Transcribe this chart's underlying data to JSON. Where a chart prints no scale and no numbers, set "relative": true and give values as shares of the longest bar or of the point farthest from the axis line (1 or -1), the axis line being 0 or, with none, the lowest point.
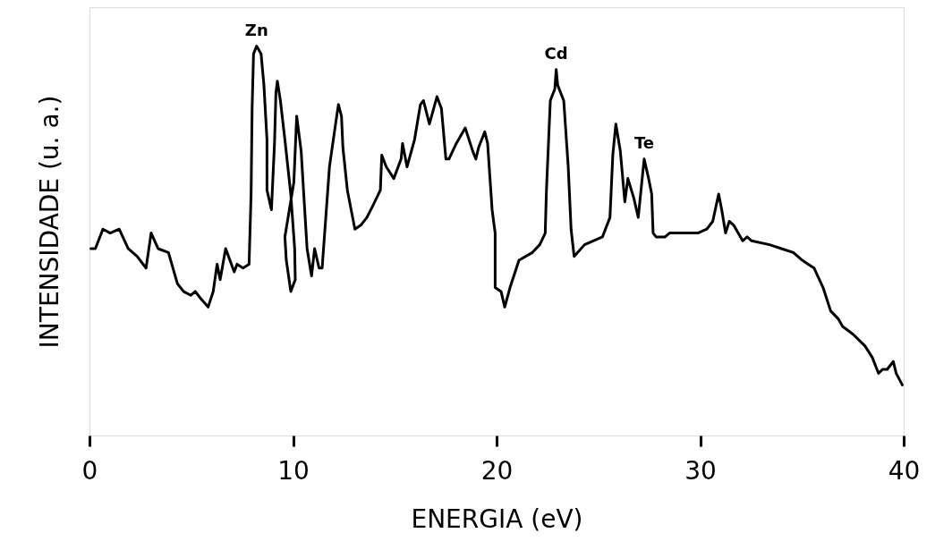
{
  "chart_data": {
    "type": "line",
    "relative": true,
    "xlabel": "ENERGIA (eV)",
    "ylabel": "INTENSIDADE (u. a.)",
    "xlim": [
      0,
      40
    ],
    "xticks": [
      0,
      10,
      20,
      30,
      40
    ],
    "grid": false,
    "marker": "none",
    "line_style": "solid",
    "annotations": [
      {
        "text": "Zn",
        "x": 8.21,
        "y": 1.0
      },
      {
        "text": "Cd",
        "x": 22.93,
        "y": 0.94
      },
      {
        "text": "Te",
        "x": 27.25,
        "y": 0.71
      }
    ],
    "series": [
      {
        "color": "#000000",
        "x": [
          0.07,
          0.29,
          0.66,
          1.02,
          1.46,
          1.9,
          2.34,
          2.78,
          3.03,
          3.37,
          3.88,
          4.32,
          4.62,
          4.98,
          5.2,
          5.49,
          5.83,
          6.08,
          6.27,
          6.42,
          6.69,
          7.11,
          7.25,
          7.55,
          7.84,
          7.94,
          7.99,
          8.06,
          8.21,
          8.43,
          8.57,
          8.72,
          8.72,
          8.94,
          9.09,
          9.16,
          9.23,
          9.38,
          9.6,
          9.89,
          10.08,
          10.11,
          9.89,
          9.67,
          9.6,
          9.82,
          10.04,
          10.18,
          10.4,
          10.55,
          10.69,
          10.91,
          11.06,
          11.28,
          11.43,
          11.79,
          12.09,
          12.23,
          12.38,
          12.45,
          12.67,
          13.04,
          13.33,
          13.63,
          13.92,
          14.29,
          14.36,
          14.58,
          14.95,
          15.31,
          15.38,
          15.6,
          15.97,
          16.26,
          16.41,
          16.7,
          17.07,
          17.29,
          17.51,
          17.66,
          18.02,
          18.46,
          18.83,
          18.98,
          19.12,
          19.42,
          19.56,
          19.78,
          19.93,
          19.93,
          20.22,
          20.4,
          20.66,
          21.1,
          21.76,
          22.12,
          22.39,
          22.45,
          22.64,
          22.86,
          22.93,
          23.0,
          23.3,
          23.52,
          23.66,
          23.81,
          24.32,
          25.2,
          25.57,
          25.71,
          25.86,
          26.08,
          26.3,
          26.45,
          26.74,
          26.96,
          27.25,
          27.47,
          27.62,
          27.69,
          27.84,
          28.28,
          28.5,
          29.01,
          29.31,
          29.89,
          30.33,
          30.62,
          30.91,
          31.06,
          31.25,
          31.43,
          31.65,
          32.09,
          32.31,
          32.53,
          33.41,
          33.99,
          34.58,
          35.02,
          35.31,
          35.6,
          36.04,
          36.41,
          36.78,
          37.0,
          37.51,
          38.1,
          38.46,
          38.76,
          38.97,
          39.19,
          39.49,
          39.63,
          39.93
        ],
        "values": [
          0.48,
          0.48,
          0.53,
          0.52,
          0.53,
          0.48,
          0.46,
          0.43,
          0.52,
          0.48,
          0.47,
          0.39,
          0.37,
          0.36,
          0.37,
          0.35,
          0.33,
          0.37,
          0.44,
          0.4,
          0.48,
          0.42,
          0.44,
          0.43,
          0.44,
          0.62,
          0.84,
          0.98,
          1.0,
          0.98,
          0.9,
          0.76,
          0.63,
          0.58,
          0.75,
          0.88,
          0.91,
          0.86,
          0.76,
          0.62,
          0.48,
          0.4,
          0.37,
          0.45,
          0.51,
          0.58,
          0.65,
          0.82,
          0.73,
          0.6,
          0.48,
          0.41,
          0.48,
          0.43,
          0.43,
          0.69,
          0.8,
          0.85,
          0.82,
          0.74,
          0.63,
          0.53,
          0.54,
          0.56,
          0.59,
          0.63,
          0.72,
          0.69,
          0.66,
          0.71,
          0.75,
          0.69,
          0.76,
          0.85,
          0.86,
          0.8,
          0.87,
          0.84,
          0.71,
          0.71,
          0.75,
          0.79,
          0.73,
          0.71,
          0.74,
          0.78,
          0.75,
          0.58,
          0.52,
          0.38,
          0.37,
          0.33,
          0.38,
          0.45,
          0.47,
          0.49,
          0.52,
          0.63,
          0.86,
          0.89,
          0.94,
          0.9,
          0.86,
          0.69,
          0.53,
          0.46,
          0.49,
          0.51,
          0.56,
          0.72,
          0.8,
          0.73,
          0.6,
          0.66,
          0.61,
          0.56,
          0.71,
          0.66,
          0.62,
          0.52,
          0.51,
          0.51,
          0.52,
          0.52,
          0.52,
          0.52,
          0.53,
          0.55,
          0.62,
          0.58,
          0.52,
          0.55,
          0.54,
          0.5,
          0.51,
          0.5,
          0.49,
          0.48,
          0.47,
          0.45,
          0.44,
          0.43,
          0.38,
          0.32,
          0.3,
          0.28,
          0.26,
          0.23,
          0.2,
          0.16,
          0.17,
          0.17,
          0.19,
          0.16,
          0.13
        ]
      }
    ]
  }
}
